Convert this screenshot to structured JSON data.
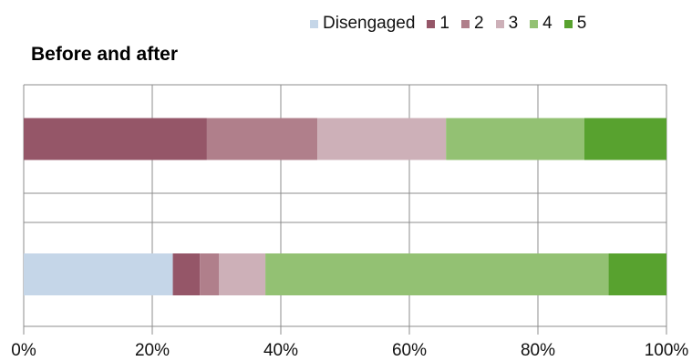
{
  "chart_data": {
    "type": "bar",
    "orientation": "horizontal",
    "stacked": true,
    "title": "Before and after",
    "xlim": [
      0,
      100
    ],
    "x_ticks": [
      "0%",
      "20%",
      "40%",
      "60%",
      "80%",
      "100%"
    ],
    "x_tick_values": [
      0,
      20,
      40,
      60,
      80,
      100
    ],
    "grid": "vertical",
    "legend_position": "top-right",
    "categories": [
      "",
      ""
    ],
    "series": [
      {
        "name": "Disengaged",
        "color": "#c5d6e8",
        "values": [
          0,
          23.2
        ]
      },
      {
        "name": "1",
        "color": "#955668",
        "values": [
          28.5,
          4.2
        ]
      },
      {
        "name": "2",
        "color": "#b07f8b",
        "values": [
          17.2,
          3.0
        ]
      },
      {
        "name": "3",
        "color": "#cdb0b8",
        "values": [
          20.0,
          7.2
        ]
      },
      {
        "name": "4",
        "color": "#93c173",
        "values": [
          21.5,
          53.4
        ]
      },
      {
        "name": "5",
        "color": "#58a22f",
        "values": [
          12.8,
          9.0
        ]
      }
    ]
  }
}
